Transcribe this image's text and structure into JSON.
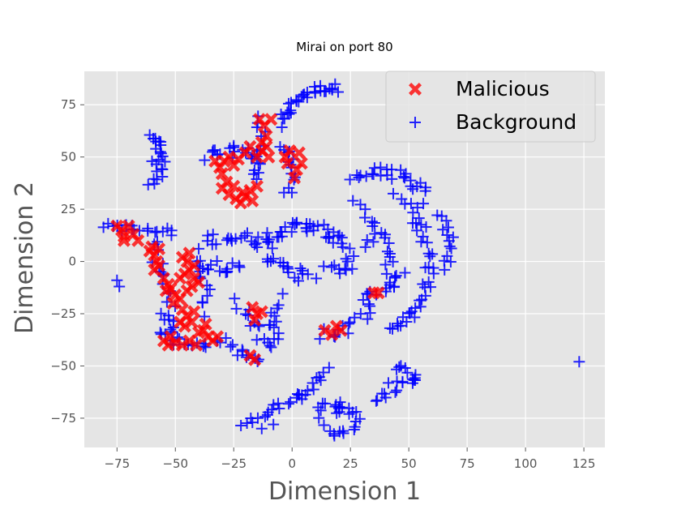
{
  "chart_data": {
    "type": "scatter",
    "title": "Mirai on port 80",
    "xlabel": "Dimension 1",
    "ylabel": "Dimension 2",
    "xlim": [
      -89,
      134
    ],
    "ylim": [
      -89,
      91
    ],
    "xticks": [
      -75,
      -50,
      -25,
      0,
      25,
      50,
      75,
      100,
      125
    ],
    "xtick_labels": [
      "−75",
      "−50",
      "−25",
      "0",
      "25",
      "50",
      "75",
      "100",
      "125"
    ],
    "yticks": [
      -75,
      -50,
      -25,
      0,
      25,
      50,
      75
    ],
    "ytick_labels": [
      "−75",
      "−50",
      "−25",
      "0",
      "25",
      "50",
      "75"
    ],
    "grid": true,
    "legend_position": "top-right",
    "colors": {
      "background_panel": "#e5e5e5",
      "grid": "#ffffff",
      "malicious": "#ff0000",
      "background_series": "#0000ff"
    },
    "series": [
      {
        "name": "Malicious",
        "marker": "X",
        "color": "#ff0000",
        "points": [
          [
            -75,
            17
          ],
          [
            -73,
            15
          ],
          [
            -72,
            12
          ],
          [
            -70,
            17
          ],
          [
            -68,
            13
          ],
          [
            -66,
            10
          ],
          [
            -72,
            10
          ],
          [
            -60,
            7
          ],
          [
            -59,
            3
          ],
          [
            -58,
            0
          ],
          [
            -59,
            -4
          ],
          [
            -57,
            -2
          ],
          [
            -61,
            5
          ],
          [
            -57,
            6
          ],
          [
            -55,
            -8
          ],
          [
            -53,
            -11
          ],
          [
            -52,
            -13
          ],
          [
            -50,
            -16
          ],
          [
            -48,
            -18
          ],
          [
            -51,
            -20
          ],
          [
            -54,
            -14
          ],
          [
            -47,
            2
          ],
          [
            -45,
            0
          ],
          [
            -44,
            -4
          ],
          [
            -46,
            -6
          ],
          [
            -48,
            -8
          ],
          [
            -42,
            -8
          ],
          [
            -40,
            -10
          ],
          [
            -43,
            -12
          ],
          [
            -45,
            -14
          ],
          [
            -42,
            -2
          ],
          [
            -44,
            4
          ],
          [
            -47,
            -23
          ],
          [
            -45,
            -26
          ],
          [
            -43,
            -29
          ],
          [
            -46,
            -31
          ],
          [
            -48,
            -29
          ],
          [
            -42,
            -24
          ],
          [
            -55,
            -38
          ],
          [
            -53,
            -40
          ],
          [
            -50,
            -39
          ],
          [
            -47,
            -40
          ],
          [
            -44,
            -38
          ],
          [
            -41,
            -40
          ],
          [
            -52,
            -36
          ],
          [
            -38,
            -33
          ],
          [
            -36,
            -36
          ],
          [
            -34,
            -38
          ],
          [
            -32,
            -36
          ],
          [
            -37,
            -30
          ],
          [
            -40,
            -34
          ],
          [
            -33,
            48
          ],
          [
            -31,
            45
          ],
          [
            -29,
            48
          ],
          [
            -27,
            50
          ],
          [
            -25,
            46
          ],
          [
            -23,
            49
          ],
          [
            -30,
            42
          ],
          [
            -28,
            38
          ],
          [
            -30,
            35
          ],
          [
            -27,
            32
          ],
          [
            -25,
            36
          ],
          [
            -24,
            30
          ],
          [
            -22,
            28
          ],
          [
            -20,
            31
          ],
          [
            -18,
            34
          ],
          [
            -15,
            36
          ],
          [
            -17,
            29
          ],
          [
            -21,
            33
          ],
          [
            -20,
            52
          ],
          [
            -18,
            55
          ],
          [
            -15,
            50
          ],
          [
            -13,
            53
          ],
          [
            -11,
            55
          ],
          [
            -10,
            50
          ],
          [
            -14,
            68
          ],
          [
            -12,
            65
          ],
          [
            -11,
            60
          ],
          [
            -13,
            57
          ],
          [
            -9,
            68
          ],
          [
            -3,
            50
          ],
          [
            -2,
            47
          ],
          [
            2,
            44
          ],
          [
            4,
            47
          ],
          [
            3,
            52
          ],
          [
            -1,
            53
          ],
          [
            1,
            40
          ],
          [
            -17,
            -22
          ],
          [
            -15,
            -25
          ],
          [
            -16,
            -28
          ],
          [
            -13,
            -24
          ],
          [
            -18,
            -45
          ],
          [
            -16,
            -47
          ],
          [
            14,
            -33
          ],
          [
            17,
            -35
          ],
          [
            19,
            -31
          ],
          [
            21,
            -33
          ],
          [
            35,
            -15
          ],
          [
            37,
            -15
          ]
        ]
      },
      {
        "name": "Background",
        "marker": "+",
        "color": "#0000ff",
        "clusters": [
          {
            "type": "arc",
            "from": [
              -5,
              65
            ],
            "ctrl": [
              2,
              85
            ],
            "to": [
              20,
              83
            ],
            "n": 30,
            "spread": 2
          },
          {
            "type": "arc",
            "from": [
              -60,
              62
            ],
            "ctrl": [
              -52,
              50
            ],
            "to": [
              -60,
              35
            ],
            "n": 22,
            "spread": 2
          },
          {
            "type": "arc",
            "from": [
              -35,
              50
            ],
            "ctrl": [
              -25,
              55
            ],
            "to": [
              -15,
              50
            ],
            "n": 18,
            "spread": 3
          },
          {
            "type": "arc",
            "from": [
              -14,
              70
            ],
            "ctrl": [
              -12,
              50
            ],
            "to": [
              -16,
              40
            ],
            "n": 14,
            "spread": 2
          },
          {
            "type": "arc",
            "from": [
              -4,
              55
            ],
            "ctrl": [
              4,
              45
            ],
            "to": [
              -2,
              33
            ],
            "n": 14,
            "spread": 2
          },
          {
            "type": "arc",
            "from": [
              25,
              40
            ],
            "ctrl": [
              45,
              48
            ],
            "to": [
              58,
              30
            ],
            "n": 26,
            "spread": 3
          },
          {
            "type": "arc",
            "from": [
              45,
              30
            ],
            "ctrl": [
              60,
              20
            ],
            "to": [
              58,
              -3
            ],
            "n": 20,
            "spread": 3
          },
          {
            "type": "arc",
            "from": [
              63,
              22
            ],
            "ctrl": [
              70,
              10
            ],
            "to": [
              66,
              -2
            ],
            "n": 14,
            "spread": 2
          },
          {
            "type": "arc",
            "from": [
              36,
              15
            ],
            "ctrl": [
              43,
              5
            ],
            "to": [
              42,
              -12
            ],
            "n": 14,
            "spread": 2
          },
          {
            "type": "arc",
            "from": [
              60,
              -5
            ],
            "ctrl": [
              55,
              -25
            ],
            "to": [
              43,
              -33
            ],
            "n": 22,
            "spread": 2
          },
          {
            "type": "arc",
            "from": [
              28,
              30
            ],
            "ctrl": [
              38,
              20
            ],
            "to": [
              32,
              5
            ],
            "n": 10,
            "spread": 2
          },
          {
            "type": "arc",
            "from": [
              -80,
              18
            ],
            "ctrl": [
              -65,
              14
            ],
            "to": [
              -52,
              14
            ],
            "n": 18,
            "spread": 2
          },
          {
            "type": "arc",
            "from": [
              -35,
              10
            ],
            "ctrl": [
              -25,
              14
            ],
            "to": [
              -10,
              8
            ],
            "n": 20,
            "spread": 3
          },
          {
            "type": "arc",
            "from": [
              -40,
              -2
            ],
            "ctrl": [
              -30,
              0
            ],
            "to": [
              -22,
              -5
            ],
            "n": 14,
            "spread": 3
          },
          {
            "type": "arc",
            "from": [
              -12,
              10
            ],
            "ctrl": [
              0,
              20
            ],
            "to": [
              10,
              15
            ],
            "n": 20,
            "spread": 3
          },
          {
            "type": "arc",
            "from": [
              -12,
              4
            ],
            "ctrl": [
              -2,
              -2
            ],
            "to": [
              8,
              -10
            ],
            "n": 18,
            "spread": 3
          },
          {
            "type": "arc",
            "from": [
              8,
              15
            ],
            "ctrl": [
              20,
              15
            ],
            "to": [
              24,
              0
            ],
            "n": 18,
            "spread": 3
          },
          {
            "type": "arc",
            "from": [
              15,
              -3
            ],
            "ctrl": [
              20,
              -5
            ],
            "to": [
              26,
              -3
            ],
            "n": 8,
            "spread": 2
          },
          {
            "type": "arc",
            "from": [
              -55,
              -25
            ],
            "ctrl": [
              -52,
              -30
            ],
            "to": [
              -50,
              -36
            ],
            "n": 10,
            "spread": 2
          },
          {
            "type": "arc",
            "from": [
              -58,
              -35
            ],
            "ctrl": [
              -45,
              -42
            ],
            "to": [
              -30,
              -38
            ],
            "n": 16,
            "spread": 2
          },
          {
            "type": "arc",
            "from": [
              -60,
              8
            ],
            "ctrl": [
              -55,
              -5
            ],
            "to": [
              -50,
              -20
            ],
            "n": 14,
            "spread": 3
          },
          {
            "type": "arc",
            "from": [
              -40,
              5
            ],
            "ctrl": [
              -38,
              -10
            ],
            "to": [
              -35,
              -25
            ],
            "n": 12,
            "spread": 3
          },
          {
            "type": "arc",
            "from": [
              -22,
              -20
            ],
            "ctrl": [
              -15,
              -30
            ],
            "to": [
              -10,
              -42
            ],
            "n": 14,
            "spread": 3
          },
          {
            "type": "arc",
            "from": [
              -5,
              -17
            ],
            "ctrl": [
              -10,
              -28
            ],
            "to": [
              -6,
              -38
            ],
            "n": 12,
            "spread": 2
          },
          {
            "type": "arc",
            "from": [
              -25,
              -40
            ],
            "ctrl": [
              -20,
              -45
            ],
            "to": [
              -15,
              -47
            ],
            "n": 10,
            "spread": 2
          },
          {
            "type": "arc",
            "from": [
              35,
              -20
            ],
            "ctrl": [
              25,
              -35
            ],
            "to": [
              12,
              -35
            ],
            "n": 16,
            "spread": 3
          },
          {
            "type": "arc",
            "from": [
              47,
              -6
            ],
            "ctrl": [
              40,
              -14
            ],
            "to": [
              30,
              -18
            ],
            "n": 12,
            "spread": 2
          },
          {
            "type": "arc",
            "from": [
              -20,
              -77
            ],
            "ctrl": [
              -5,
              -70
            ],
            "to": [
              2,
              -65
            ],
            "n": 16,
            "spread": 2
          },
          {
            "type": "arc",
            "from": [
              2,
              -65
            ],
            "ctrl": [
              8,
              -60
            ],
            "to": [
              14,
              -52
            ],
            "n": 12,
            "spread": 2
          },
          {
            "type": "arc",
            "from": [
              12,
              -73
            ],
            "ctrl": [
              20,
              -65
            ],
            "to": [
              28,
              -75
            ],
            "n": 18,
            "spread": 3
          },
          {
            "type": "arc",
            "from": [
              14,
              -80
            ],
            "ctrl": [
              22,
              -85
            ],
            "to": [
              28,
              -78
            ],
            "n": 10,
            "spread": 2
          },
          {
            "type": "arc",
            "from": [
              35,
              -67
            ],
            "ctrl": [
              45,
              -58
            ],
            "to": [
              55,
              -55
            ],
            "n": 16,
            "spread": 3
          },
          {
            "type": "arc",
            "from": [
              45,
              -50
            ],
            "ctrl": [
              47,
              -48
            ],
            "to": [
              50,
              -58
            ],
            "n": 6,
            "spread": 2
          },
          {
            "type": "points",
            "pts": [
              [
                -75,
                -9
              ],
              [
                -74,
                -12
              ],
              [
                -60,
                48
              ],
              [
                123,
                -48
              ],
              [
                -13,
                -80
              ],
              [
                -8,
                -78
              ],
              [
                -17,
                -77
              ]
            ]
          }
        ]
      }
    ]
  }
}
